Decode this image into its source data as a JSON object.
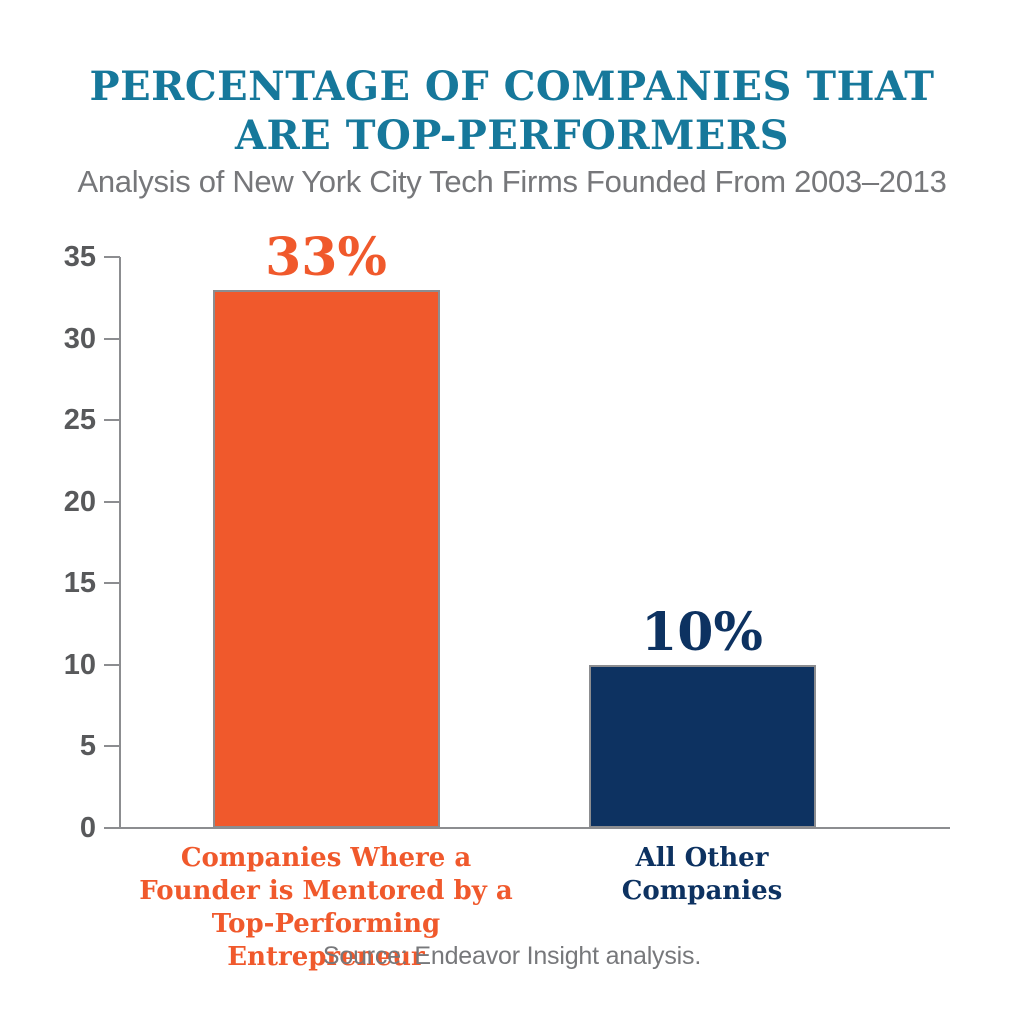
{
  "page": {
    "background_color": "#FFFFFF"
  },
  "header": {
    "title_line1": "PERCENTAGE OF COMPANIES THAT",
    "title_line2": "ARE TOP-PERFORMERS",
    "title_color": "#16789B",
    "subtitle": "Analysis of New York City Tech Firms Founded From 2003–2013",
    "subtitle_color": "#76777A"
  },
  "chart_data": {
    "type": "bar",
    "title": "PERCENTAGE OF COMPANIES THAT ARE TOP-PERFORMERS",
    "subtitle": "Analysis of New York City Tech Firms Founded From 2003–2013",
    "categories": [
      "Companies Where a Founder is Mentored by a Top-Performing Entrepreneur",
      "All Other Companies"
    ],
    "category_lines": [
      [
        "Companies Where a",
        "Founder is Mentored by a",
        "Top-Performing Entrepreneur"
      ],
      [
        "All Other",
        "Companies"
      ]
    ],
    "values": [
      33,
      10
    ],
    "value_labels": [
      "33%",
      "10%"
    ],
    "bar_colors": [
      "#F0592C",
      "#0D3261"
    ],
    "text_colors": [
      "#F0592C",
      "#0D3261"
    ],
    "bar_border_color": "#8C8D90",
    "xlabel": "",
    "ylabel": "",
    "ylim": [
      0,
      35
    ],
    "yticks": [
      0,
      5,
      10,
      15,
      20,
      25,
      30,
      35
    ],
    "tick_color": "#58595B",
    "axis_color": "#8C8D90",
    "grid": false,
    "legend": "none"
  },
  "footer": {
    "source": "Source: Endeavor Insight analysis.",
    "source_color": "#77787B"
  }
}
